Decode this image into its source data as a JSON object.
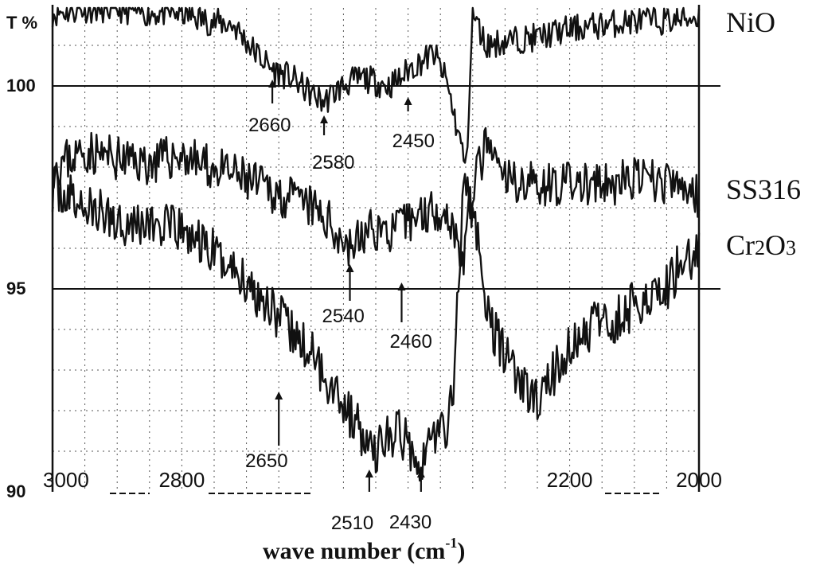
{
  "chart_data": {
    "type": "line",
    "xlabel": "wave number (cm",
    "xlabel_sup": "-1",
    "xlabel_close": ")",
    "ylabel": "T %",
    "xlim": [
      3000,
      2000
    ],
    "ylim": [
      90,
      101
    ],
    "x_ticks": [
      "3000",
      "2800",
      "2200",
      "2000"
    ],
    "x_tick_values": [
      3000,
      2800,
      2200,
      2000
    ],
    "y_ticks": [
      "100",
      "95",
      "90"
    ],
    "y_tick_values": [
      100,
      95,
      90
    ],
    "grid": true,
    "series": [
      {
        "name": "NiO",
        "points": [
          [
            3000,
            101.8
          ],
          [
            2950,
            101.9
          ],
          [
            2900,
            101.9
          ],
          [
            2850,
            101.8
          ],
          [
            2800,
            101.8
          ],
          [
            2760,
            101.6
          ],
          [
            2720,
            101.5
          ],
          [
            2690,
            100.9
          ],
          [
            2660,
            100.4
          ],
          [
            2630,
            100.2
          ],
          [
            2600,
            99.8
          ],
          [
            2580,
            99.6
          ],
          [
            2560,
            99.9
          ],
          [
            2540,
            100.1
          ],
          [
            2520,
            100.2
          ],
          [
            2500,
            100.1
          ],
          [
            2480,
            100.0
          ],
          [
            2460,
            100.2
          ],
          [
            2450,
            100.4
          ],
          [
            2430,
            100.6
          ],
          [
            2410,
            100.8
          ],
          [
            2390,
            100.1
          ],
          [
            2375,
            99.0
          ],
          [
            2360,
            98.0
          ],
          [
            2350,
            101.8
          ],
          [
            2330,
            101.0
          ],
          [
            2300,
            101.1
          ],
          [
            2250,
            101.2
          ],
          [
            2200,
            101.4
          ],
          [
            2150,
            101.5
          ],
          [
            2100,
            101.6
          ],
          [
            2050,
            101.6
          ],
          [
            2000,
            101.7
          ]
        ]
      },
      {
        "name": "SS316",
        "points": [
          [
            3000,
            98.0
          ],
          [
            2950,
            98.4
          ],
          [
            2900,
            98.2
          ],
          [
            2850,
            98.1
          ],
          [
            2800,
            98.3
          ],
          [
            2760,
            98.0
          ],
          [
            2720,
            97.8
          ],
          [
            2690,
            97.6
          ],
          [
            2660,
            97.4
          ],
          [
            2630,
            97.2
          ],
          [
            2600,
            97.0
          ],
          [
            2570,
            96.6
          ],
          [
            2550,
            96.2
          ],
          [
            2540,
            96.0
          ],
          [
            2520,
            96.3
          ],
          [
            2500,
            96.5
          ],
          [
            2480,
            96.4
          ],
          [
            2460,
            96.5
          ],
          [
            2440,
            96.8
          ],
          [
            2420,
            96.9
          ],
          [
            2400,
            97.0
          ],
          [
            2380,
            96.6
          ],
          [
            2365,
            95.6
          ],
          [
            2350,
            97.5
          ],
          [
            2330,
            98.5
          ],
          [
            2300,
            97.7
          ],
          [
            2250,
            97.6
          ],
          [
            2200,
            97.6
          ],
          [
            2150,
            97.5
          ],
          [
            2100,
            97.7
          ],
          [
            2050,
            97.6
          ],
          [
            2000,
            97.3
          ]
        ]
      },
      {
        "name": "Cr2O3",
        "points": [
          [
            3000,
            97.5
          ],
          [
            2950,
            97.0
          ],
          [
            2900,
            96.7
          ],
          [
            2850,
            96.6
          ],
          [
            2800,
            96.4
          ],
          [
            2760,
            96.0
          ],
          [
            2720,
            95.5
          ],
          [
            2690,
            95.0
          ],
          [
            2660,
            94.6
          ],
          [
            2650,
            94.3
          ],
          [
            2630,
            93.9
          ],
          [
            2600,
            93.4
          ],
          [
            2580,
            92.9
          ],
          [
            2560,
            92.5
          ],
          [
            2540,
            91.9
          ],
          [
            2520,
            91.4
          ],
          [
            2510,
            90.9
          ],
          [
            2490,
            91.2
          ],
          [
            2470,
            91.5
          ],
          [
            2450,
            91.2
          ],
          [
            2430,
            90.8
          ],
          [
            2410,
            91.4
          ],
          [
            2390,
            91.6
          ],
          [
            2380,
            92.5
          ],
          [
            2370,
            96.0
          ],
          [
            2360,
            97.8
          ],
          [
            2345,
            96.5
          ],
          [
            2330,
            94.5
          ],
          [
            2310,
            93.7
          ],
          [
            2290,
            93.2
          ],
          [
            2270,
            92.5
          ],
          [
            2250,
            92.2
          ],
          [
            2230,
            92.8
          ],
          [
            2200,
            93.5
          ],
          [
            2170,
            94.0
          ],
          [
            2150,
            94.2
          ],
          [
            2130,
            94.2
          ],
          [
            2100,
            94.6
          ],
          [
            2080,
            94.9
          ],
          [
            2050,
            95.0
          ],
          [
            2030,
            95.6
          ],
          [
            2000,
            96.0
          ]
        ]
      }
    ],
    "annotations": [
      {
        "label": "2660",
        "x": 2660,
        "series": "NiO"
      },
      {
        "label": "2580",
        "x": 2580,
        "series": "NiO"
      },
      {
        "label": "2450",
        "x": 2450,
        "series": "NiO"
      },
      {
        "label": "2540",
        "x": 2540,
        "series": "SS316"
      },
      {
        "label": "2460",
        "x": 2460,
        "series": "SS316"
      },
      {
        "label": "2650",
        "x": 2650,
        "series": "Cr2O3"
      },
      {
        "label": "2510",
        "x": 2510,
        "series": "Cr2O3"
      },
      {
        "label": "2430",
        "x": 2430,
        "series": "Cr2O3"
      }
    ]
  }
}
